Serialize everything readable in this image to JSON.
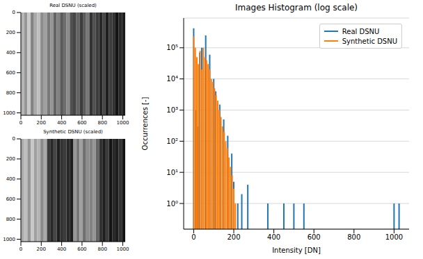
{
  "chart_data": [
    {
      "type": "heatmap",
      "title": "Real DSNU (scaled)",
      "xlim": [
        0,
        1024
      ],
      "ylim": [
        1024,
        0
      ],
      "xticks": [
        0,
        200,
        400,
        600,
        800,
        1000
      ],
      "yticks": [
        0,
        200,
        400,
        600,
        800,
        1000
      ],
      "color_range": [
        0,
        255
      ],
      "column_edges": [
        0,
        32,
        64,
        96,
        128,
        160,
        192,
        224,
        256,
        288,
        320,
        352,
        384,
        416,
        448,
        480,
        512,
        544,
        576,
        608,
        640,
        672,
        704,
        736,
        768,
        800,
        832,
        864,
        896,
        928,
        960,
        992,
        1024
      ],
      "column_values": [
        180,
        150,
        200,
        130,
        170,
        190,
        140,
        160,
        120,
        150,
        100,
        130,
        90,
        110,
        140,
        80,
        70,
        100,
        60,
        90,
        120,
        50,
        80,
        60,
        40,
        70,
        30,
        60,
        50,
        20,
        40,
        30
      ],
      "grid": false
    },
    {
      "type": "heatmap",
      "title": "Synthetic DSNU (scaled)",
      "xlim": [
        0,
        1024
      ],
      "ylim": [
        1024,
        0
      ],
      "xticks": [
        0,
        200,
        400,
        600,
        800,
        1000
      ],
      "yticks": [
        0,
        200,
        400,
        600,
        800,
        1000
      ],
      "color_range": [
        0,
        255
      ],
      "column_edges": [
        0,
        32,
        64,
        96,
        128,
        160,
        192,
        224,
        256,
        288,
        320,
        352,
        384,
        416,
        448,
        480,
        512,
        544,
        576,
        608,
        640,
        672,
        704,
        736,
        768,
        800,
        832,
        864,
        896,
        928,
        960,
        992,
        1024
      ],
      "column_values": [
        170,
        190,
        150,
        200,
        160,
        180,
        140,
        170,
        60,
        40,
        70,
        30,
        50,
        60,
        40,
        30,
        150,
        120,
        160,
        110,
        140,
        130,
        150,
        100,
        50,
        30,
        60,
        20,
        40,
        30,
        50,
        20
      ],
      "grid": false
    },
    {
      "type": "histogram",
      "title": "Images Histogram (log scale)",
      "xlabel": "Intensity [DN]",
      "ylabel": "Occurrences [-]",
      "log": "y",
      "grid": true,
      "legend": "upper right",
      "xlim": [
        -50,
        1075
      ],
      "ylim": [
        0.15,
        900000
      ],
      "xticks": [
        0,
        200,
        400,
        600,
        800,
        1000
      ],
      "yticks": [
        {
          "value": 1,
          "label": "10⁰"
        },
        {
          "value": 10,
          "label": "10¹"
        },
        {
          "value": 100,
          "label": "10²"
        },
        {
          "value": 1000,
          "label": "10³"
        },
        {
          "value": 10000,
          "label": "10⁴"
        },
        {
          "value": 100000,
          "label": "10⁵"
        }
      ],
      "x": [
        0,
        8,
        12,
        16,
        20,
        24,
        30,
        32,
        40,
        48,
        56,
        60,
        64,
        72,
        80,
        88,
        96,
        100,
        104,
        110,
        112,
        120,
        128,
        130,
        136,
        144,
        150,
        152,
        160,
        168,
        170,
        176,
        184,
        190,
        192,
        200,
        208,
        220,
        240,
        270,
        370,
        450,
        500,
        550,
        1000,
        1025
      ],
      "series": [
        {
          "name": "Real DSNU",
          "color": "#1f77b4",
          "values": [
            420000,
            null,
            1000,
            null,
            300,
            null,
            70000,
            null,
            100000,
            null,
            null,
            250000,
            null,
            null,
            60000,
            null,
            null,
            10000,
            null,
            4000,
            null,
            null,
            null,
            1500,
            null,
            null,
            500,
            null,
            null,
            null,
            150,
            null,
            null,
            40,
            null,
            5,
            null,
            1,
            2,
            4,
            1,
            1,
            1,
            1,
            1,
            1
          ]
        },
        {
          "name": "Synthetic DSNU",
          "color": "#ff7f0e",
          "values": [
            230000,
            100000,
            null,
            50000,
            null,
            30000,
            null,
            80000,
            20000,
            100000,
            50000,
            null,
            40000,
            30000,
            20000,
            10000,
            8000,
            null,
            5000,
            null,
            3000,
            2000,
            1000,
            null,
            600,
            300,
            null,
            200,
            100,
            60,
            null,
            30,
            15,
            null,
            8,
            3,
            1,
            null,
            null,
            null,
            null,
            null,
            null,
            null,
            null,
            null
          ]
        }
      ]
    }
  ]
}
